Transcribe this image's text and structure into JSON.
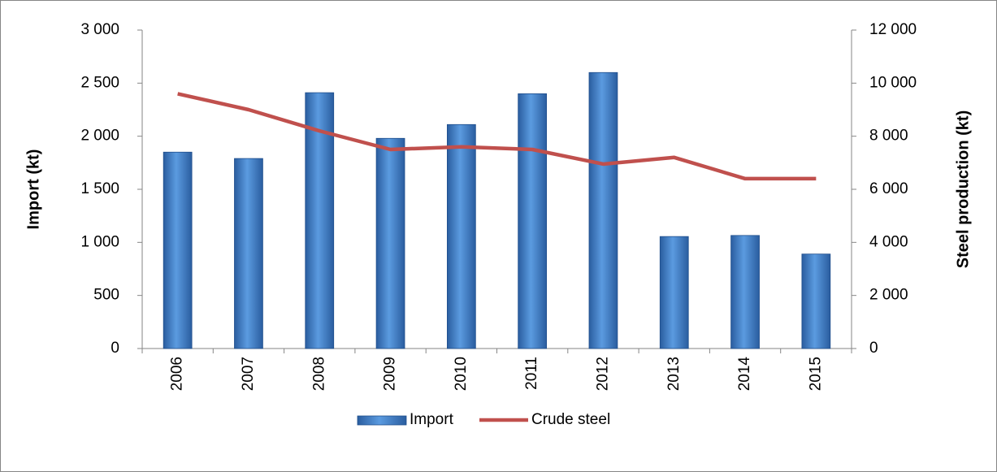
{
  "chart_data": {
    "type": "bar_line",
    "categories": [
      "2006",
      "2007",
      "2008",
      "2009",
      "2010",
      "2011",
      "2012",
      "2013",
      "2014",
      "2015"
    ],
    "series": [
      {
        "name": "Import",
        "type": "bar",
        "color": "#3a78c4",
        "values": [
          1850,
          1790,
          2410,
          1980,
          2110,
          2400,
          2600,
          1055,
          1065,
          890
        ]
      },
      {
        "name": "Crude steel",
        "type": "line",
        "axis": "y2",
        "color": "#c0504d",
        "values": [
          9600,
          9000,
          8200,
          7500,
          7600,
          7500,
          6950,
          7200,
          6400,
          6400
        ]
      }
    ],
    "ylabel": "Import  (kt)",
    "y2label": "Steel production (kt)",
    "ylim": [
      0,
      3000
    ],
    "yticks": [
      0,
      500,
      {
        "value": 1000,
        "label": "1 000"
      },
      {
        "value": 1500,
        "label": "1 500"
      },
      {
        "value": 2000,
        "label": "2 000"
      },
      {
        "value": 2500,
        "label": "2 500"
      },
      {
        "value": 3000,
        "label": "3 000"
      }
    ],
    "y2lim": [
      0,
      12000
    ],
    "y2ticks": [
      0,
      {
        "value": 2000,
        "label": "2 000"
      },
      {
        "value": 4000,
        "label": "4 000"
      },
      {
        "value": 6000,
        "label": "6 000"
      },
      {
        "value": 8000,
        "label": "8 000"
      },
      {
        "value": 10000,
        "label": "10 000"
      },
      {
        "value": 12000,
        "label": "12 000"
      }
    ],
    "legend": "bottom"
  }
}
